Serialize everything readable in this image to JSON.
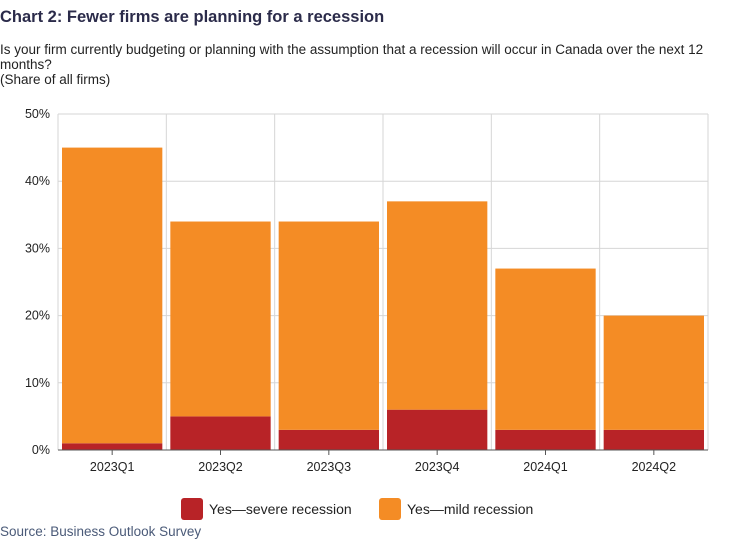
{
  "title": "Chart 2: Fewer firms are planning for a recession",
  "subtitle": "Is your firm currently budgeting or planning with the assumption that a recession will occur in Canada over the next 12 months?",
  "note": "(Share of all firms)",
  "source": "Source: Business Outlook Survey",
  "chart_data": {
    "type": "bar",
    "stacked": true,
    "categories": [
      "2023Q1",
      "2023Q2",
      "2023Q3",
      "2023Q4",
      "2024Q1",
      "2024Q2"
    ],
    "series": [
      {
        "name": "Yes—severe recession",
        "color": "#b82327",
        "values": [
          1,
          5,
          3,
          6,
          3,
          3
        ]
      },
      {
        "name": "Yes—mild recession",
        "color": "#f48c25",
        "values": [
          44,
          29,
          31,
          31,
          24,
          17
        ]
      }
    ],
    "ylim": [
      0,
      50
    ],
    "yticks": [
      "0%",
      "10%",
      "20%",
      "30%",
      "40%",
      "50%"
    ],
    "ytick_values": [
      0,
      10,
      20,
      30,
      40,
      50
    ],
    "grid": true,
    "legend_position": "bottom"
  }
}
